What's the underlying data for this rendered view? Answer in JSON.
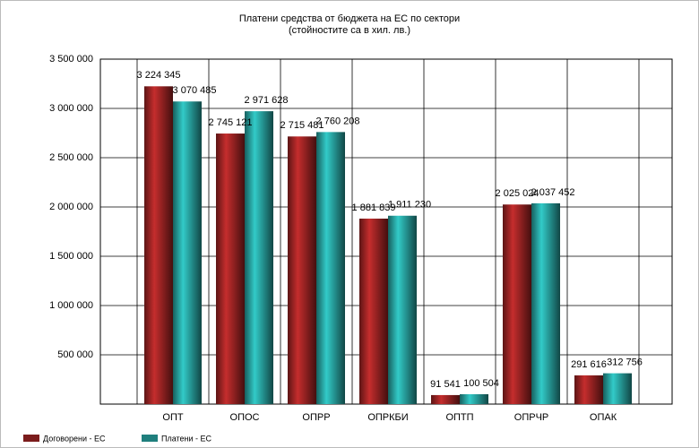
{
  "chart_data": {
    "type": "bar",
    "title": "Платени средства от бюджета на ЕС по сектори",
    "subtitle": "(стойностите са в хил. лв.)",
    "categories": [
      "ОПТ",
      "ОПОС",
      "ОПРР",
      "ОПРКБИ",
      "ОПТП",
      "ОПРЧР",
      "ОПАК"
    ],
    "series": [
      {
        "name": "Договорени - ЕС",
        "color": "#7b1c1c",
        "values": [
          3224345,
          2745121,
          2715481,
          1881839,
          91541,
          2025024,
          291616
        ],
        "value_labels": [
          "3 224 345",
          "2 745 121",
          "2 715 481",
          "1 881 839",
          "91 541",
          "2 025 024",
          "291 616"
        ]
      },
      {
        "name": "Платени - ЕС",
        "color": "#1f7f7d",
        "values": [
          3070485,
          2971628,
          2760208,
          1911230,
          100504,
          2037452,
          312756
        ],
        "value_labels": [
          "3 070 485",
          "2 971 628",
          "2 760 208",
          "1 911 230",
          "100 504",
          "2 037 452",
          "312 756"
        ]
      }
    ],
    "ylim": [
      0,
      3500000
    ],
    "yticks": [
      {
        "value": 500000,
        "label": "500 000"
      },
      {
        "value": 1000000,
        "label": "1 000 000"
      },
      {
        "value": 1500000,
        "label": "1 500 000"
      },
      {
        "value": 2000000,
        "label": "2 000 000"
      },
      {
        "value": 2500000,
        "label": "2 500 000"
      },
      {
        "value": 3000000,
        "label": "3 000 000"
      },
      {
        "value": 3500000,
        "label": "3 500 000"
      }
    ],
    "grid": true,
    "legend": "bottom-left"
  }
}
